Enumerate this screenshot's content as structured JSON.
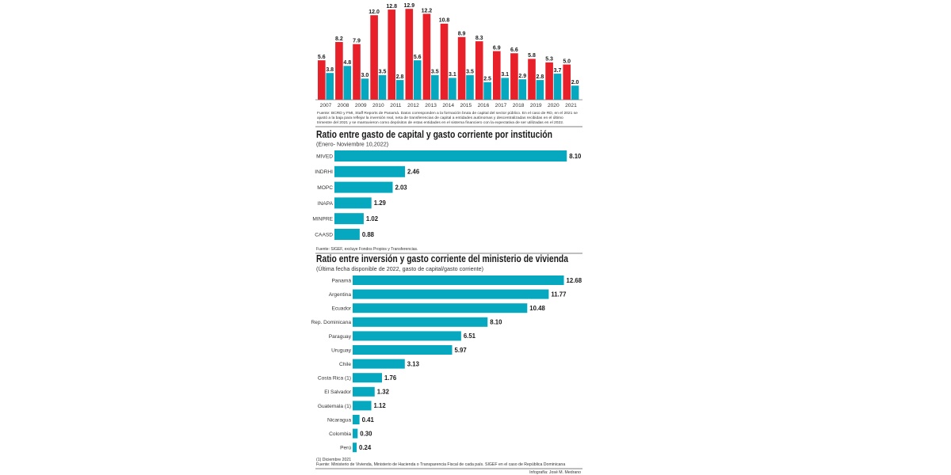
{
  "colors": {
    "red": "#e8202a",
    "teal": "#05a8bf",
    "text": "#1a1a1a",
    "rule": "#555555"
  },
  "chart_data": [
    {
      "type": "bar",
      "categories": [
        "2007",
        "2008",
        "2009",
        "2010",
        "2011",
        "2012",
        "2013",
        "2014",
        "2015",
        "2016",
        "2017",
        "2018",
        "2019",
        "2020",
        "2021"
      ],
      "series": [
        {
          "values": [
            5.6,
            8.2,
            7.9,
            12.0,
            12.8,
            12.9,
            12.2,
            10.8,
            8.9,
            8.3,
            6.9,
            6.6,
            5.8,
            5.3,
            5.0
          ],
          "labels": [
            "5.6",
            "8.2",
            "7.9",
            "12.0",
            "12.8",
            "12.9",
            "12.2",
            "10.8",
            "8.9",
            "8.3",
            "6.9",
            "6.6",
            "5.8",
            "5.3",
            "5.0"
          ]
        },
        {
          "values": [
            3.8,
            4.8,
            3.0,
            3.5,
            2.8,
            5.6,
            3.5,
            3.1,
            3.5,
            2.5,
            3.1,
            2.9,
            2.8,
            3.7,
            2.0
          ],
          "labels": [
            "3.8",
            "4.8",
            "3.0",
            "3.5",
            "2.8",
            "5.6",
            "3.5",
            "3.1",
            "3.5",
            "2.5",
            "3.1",
            "2.9",
            "2.8",
            "3.7",
            "2.0"
          ]
        }
      ],
      "ylim": [
        0,
        13.6
      ],
      "source": "Fuente: BCRD y FMI, Staff Reports de Panamá. Datos corresponden a la formación bruta de capital del sector público. En el caso de RD, en el 2021 se ajustó a la baja para reflejar la inversión real, neta de transferencias de capital a entidades autónomas y descentralizadas recibidas en el último trimestre del 2021 y se mantuvieron como depósitos de estas entidades en el sistema financiero con la expectativa de ser utilizadas en el 2022."
    },
    {
      "type": "bar",
      "orientation": "horizontal",
      "title": "Ratio entre gasto de capital y gasto corriente por institución",
      "subtitle": "(Enero- Noviembre 10,2022)",
      "categories": [
        "MIVED",
        "INDRHI",
        "MOPC",
        "INAPA",
        "MINPRE",
        "CAASD"
      ],
      "values": [
        8.1,
        2.46,
        2.03,
        1.29,
        1.02,
        0.88
      ],
      "labels": [
        "8.10",
        "2.46",
        "2.03",
        "1.29",
        "1.02",
        "0.88"
      ],
      "xlim": [
        0,
        8.15
      ],
      "source": "Fuente: SIGEF, excluye Fondos Propios y Transferencias."
    },
    {
      "type": "bar",
      "orientation": "horizontal",
      "title": "Ratio entre inversión y gasto corriente del ministerio de vivienda",
      "subtitle": "(Última fecha disponible de 2022, gasto de capital/gasto corriente)",
      "categories": [
        "Panamá",
        "Argentina",
        "Ecuador",
        "Rep. Dominicana",
        "Paraguay",
        "Uruguay",
        "Chile",
        "Costa Rica (1)",
        "El Salvador",
        "Guatemala (1)",
        "Nicaragua",
        "Colombia",
        "Perú"
      ],
      "values": [
        12.68,
        11.77,
        10.48,
        8.1,
        6.51,
        5.97,
        3.13,
        1.76,
        1.32,
        1.12,
        0.41,
        0.3,
        0.24
      ],
      "labels": [
        "12.68",
        "11.77",
        "10.48",
        "8.10",
        "6.51",
        "5.97",
        "3.13",
        "1.76",
        "1.32",
        "1.12",
        "0.41",
        "0.30",
        "0.24"
      ],
      "xlim": [
        0,
        12.75
      ],
      "note": "(1) Diciembre 2021",
      "source": "Fuente: Ministerio de Vivienda, Ministerio de Hacienda o Transparencia Fiscal de cada país. SIGEF en el caso de República Dominicana"
    }
  ],
  "credit": "Infografía: José M. Medrano"
}
